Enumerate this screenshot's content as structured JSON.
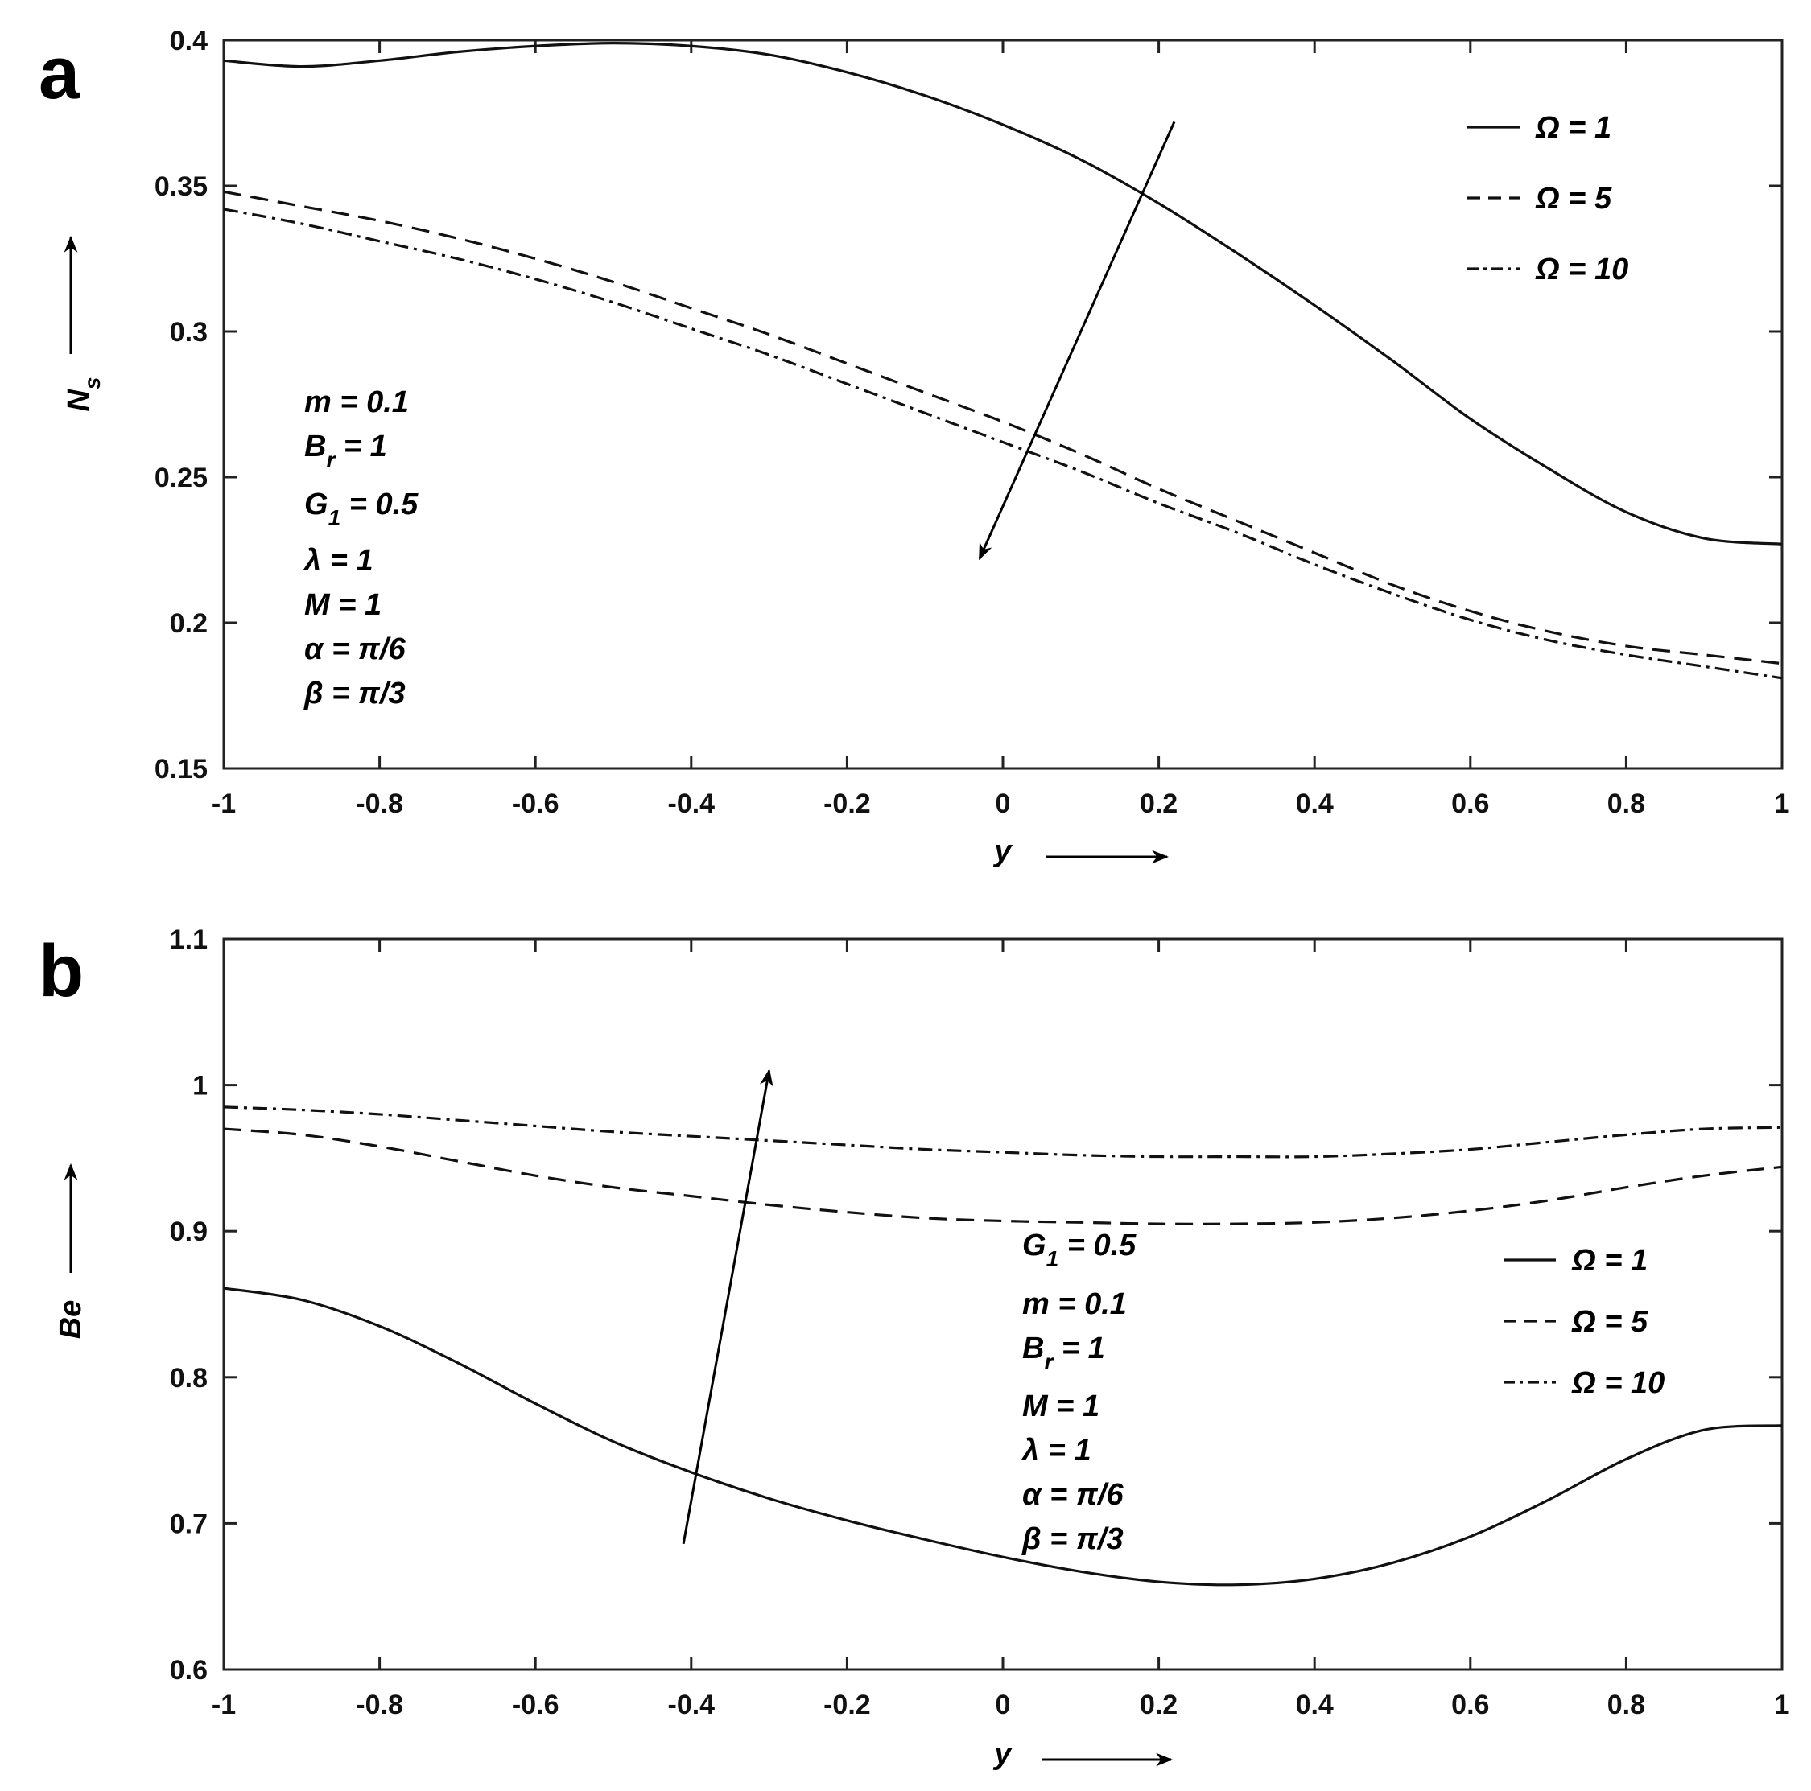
{
  "chart_data": [
    {
      "type": "line",
      "panel_label": "a",
      "xlabel": "y",
      "ylabel": "N_s",
      "ylabel_main": "N",
      "ylabel_sub": "s",
      "xlim": [
        -1,
        1
      ],
      "ylim": [
        0.15,
        0.4
      ],
      "xticks": [
        -1,
        -0.8,
        -0.6,
        -0.4,
        -0.2,
        0,
        0.2,
        0.4,
        0.6,
        0.8,
        1
      ],
      "xtick_labels": [
        "-1",
        "-0.8",
        "-0.6",
        "-0.4",
        "-0.2",
        "0",
        "0.2",
        "0.4",
        "0.6",
        "0.8",
        "1"
      ],
      "yticks": [
        0.15,
        0.2,
        0.25,
        0.3,
        0.35,
        0.4
      ],
      "ytick_labels": [
        "0.15",
        "0.2",
        "0.25",
        "0.3",
        "0.35",
        "0.4"
      ],
      "x": [
        -1,
        -0.9,
        -0.8,
        -0.7,
        -0.6,
        -0.5,
        -0.4,
        -0.3,
        -0.2,
        -0.1,
        0,
        0.1,
        0.2,
        0.3,
        0.4,
        0.5,
        0.6,
        0.7,
        0.8,
        0.9,
        1
      ],
      "series": [
        {
          "name": "Ω = 1",
          "style": "solid",
          "values": [
            0.393,
            0.391,
            0.393,
            0.396,
            0.398,
            0.399,
            0.398,
            0.395,
            0.389,
            0.381,
            0.371,
            0.359,
            0.344,
            0.327,
            0.309,
            0.29,
            0.27,
            0.253,
            0.238,
            0.229,
            0.227
          ]
        },
        {
          "name": "Ω = 5",
          "style": "dashed",
          "values": [
            0.348,
            0.343,
            0.338,
            0.332,
            0.325,
            0.317,
            0.308,
            0.299,
            0.289,
            0.279,
            0.269,
            0.258,
            0.246,
            0.235,
            0.224,
            0.213,
            0.204,
            0.197,
            0.192,
            0.189,
            0.186
          ]
        },
        {
          "name": "Ω = 10",
          "style": "dashdot",
          "values": [
            0.342,
            0.337,
            0.331,
            0.325,
            0.318,
            0.31,
            0.301,
            0.292,
            0.282,
            0.272,
            0.262,
            0.252,
            0.241,
            0.231,
            0.22,
            0.21,
            0.201,
            0.194,
            0.189,
            0.185,
            0.181
          ]
        }
      ],
      "legend_position": "top-right",
      "arrow": {
        "from": [
          0.22,
          0.372
        ],
        "to": [
          -0.03,
          0.222
        ]
      },
      "parameters": [
        {
          "main": "m = 0.1",
          "sub": "",
          "rest": ""
        },
        {
          "main": "B",
          "sub": "r",
          "rest": " = 1"
        },
        {
          "main": "G",
          "sub": "1",
          "rest": " = 0.5"
        },
        {
          "main": "λ = 1",
          "sub": "",
          "rest": ""
        },
        {
          "main": "M = 1",
          "sub": "",
          "rest": ""
        },
        {
          "main": "α = π/6",
          "sub": "",
          "rest": ""
        },
        {
          "main": "β = π/3",
          "sub": "",
          "rest": ""
        }
      ]
    },
    {
      "type": "line",
      "panel_label": "b",
      "xlabel": "y",
      "ylabel": "Be",
      "ylabel_main": "Be",
      "ylabel_sub": "",
      "xlim": [
        -1,
        1
      ],
      "ylim": [
        0.6,
        1.1
      ],
      "xticks": [
        -1,
        -0.8,
        -0.6,
        -0.4,
        -0.2,
        0,
        0.2,
        0.4,
        0.6,
        0.8,
        1
      ],
      "xtick_labels": [
        "-1",
        "-0.8",
        "-0.6",
        "-0.4",
        "-0.2",
        "0",
        "0.2",
        "0.4",
        "0.6",
        "0.8",
        "1"
      ],
      "yticks": [
        0.6,
        0.7,
        0.8,
        0.9,
        1,
        1.1
      ],
      "ytick_labels": [
        "0.6",
        "0.7",
        "0.8",
        "0.9",
        "1",
        "1.1"
      ],
      "x": [
        -1,
        -0.9,
        -0.8,
        -0.7,
        -0.6,
        -0.5,
        -0.4,
        -0.3,
        -0.2,
        -0.1,
        0,
        0.1,
        0.2,
        0.3,
        0.4,
        0.5,
        0.6,
        0.7,
        0.8,
        0.9,
        1
      ],
      "series": [
        {
          "name": "Ω = 1",
          "style": "solid",
          "values": [
            0.861,
            0.853,
            0.835,
            0.81,
            0.782,
            0.756,
            0.735,
            0.717,
            0.702,
            0.689,
            0.677,
            0.667,
            0.66,
            0.658,
            0.662,
            0.673,
            0.691,
            0.716,
            0.744,
            0.764,
            0.767
          ]
        },
        {
          "name": "Ω = 5",
          "style": "dashed",
          "values": [
            0.97,
            0.966,
            0.958,
            0.948,
            0.938,
            0.93,
            0.924,
            0.918,
            0.913,
            0.909,
            0.907,
            0.906,
            0.905,
            0.905,
            0.906,
            0.909,
            0.914,
            0.921,
            0.93,
            0.938,
            0.944
          ]
        },
        {
          "name": "Ω = 10",
          "style": "dashdot",
          "values": [
            0.985,
            0.983,
            0.98,
            0.976,
            0.972,
            0.968,
            0.965,
            0.962,
            0.959,
            0.956,
            0.954,
            0.952,
            0.951,
            0.951,
            0.951,
            0.953,
            0.956,
            0.961,
            0.966,
            0.97,
            0.971
          ]
        }
      ],
      "legend_position": "center-right",
      "arrow": {
        "from": [
          -0.41,
          0.686
        ],
        "to": [
          -0.3,
          1.01
        ]
      },
      "parameters": [
        {
          "main": "G",
          "sub": "1",
          "rest": " = 0.5"
        },
        {
          "main": "m = 0.1",
          "sub": "",
          "rest": ""
        },
        {
          "main": "B",
          "sub": "r",
          "rest": " = 1"
        },
        {
          "main": "M = 1",
          "sub": "",
          "rest": ""
        },
        {
          "main": "λ = 1",
          "sub": "",
          "rest": ""
        },
        {
          "main": "α = π/6",
          "sub": "",
          "rest": ""
        },
        {
          "main": "β = π/3",
          "sub": "",
          "rest": ""
        }
      ]
    }
  ]
}
